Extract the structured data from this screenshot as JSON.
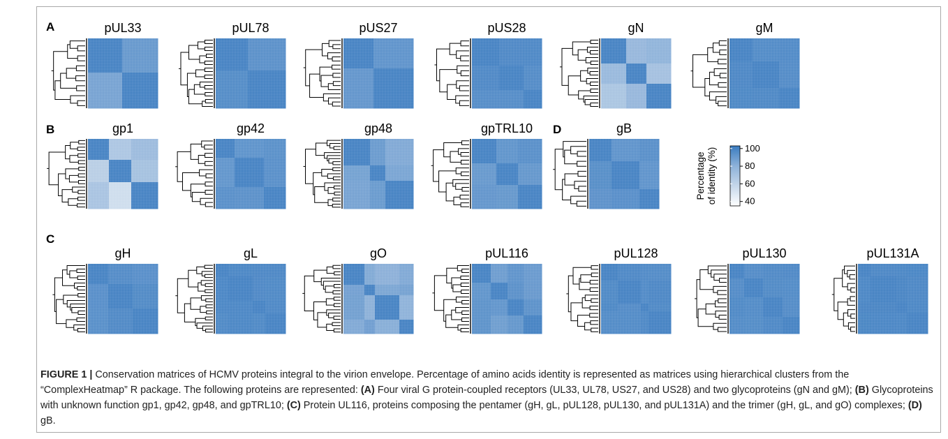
{
  "figure": {
    "panel_letters": [
      "A",
      "B",
      "C",
      "D"
    ],
    "caption": {
      "label": "FIGURE 1 |",
      "segments": [
        {
          "t": " Conservation matrices of HCMV proteins integral to the virion envelope. Percentage of amino acids identity is represented as matrices using hierarchical clusters from the “ComplexHeatmap” R package. The following proteins are represented: ",
          "b": false
        },
        {
          "t": "(A)",
          "b": true
        },
        {
          "t": " Four viral G protein-coupled receptors (UL33, UL78, US27, and US28) and two glycoproteins (gN and gM); ",
          "b": false
        },
        {
          "t": "(B)",
          "b": true
        },
        {
          "t": " Glycoproteins with unknown function gp1, gp42, gp48, and gpTRL10; ",
          "b": false
        },
        {
          "t": "(C)",
          "b": true
        },
        {
          "t": " Protein UL116, proteins composing the pentamer (gH, gL, pUL128, pUL130, and pUL131A) and the trimer (gH, gL, and gO) complexes; ",
          "b": false
        },
        {
          "t": "(D)",
          "b": true
        },
        {
          "t": " gB.",
          "b": false
        }
      ]
    }
  },
  "chart_data": {
    "type": "heatmap",
    "color_scale": {
      "title": [
        "Percentage",
        "of identity (%)"
      ],
      "ticks": [
        40,
        60,
        80,
        100
      ],
      "range": [
        35,
        103
      ],
      "colors": [
        "#ffffff",
        "#c6d7ea",
        "#8db1d9",
        "#3a7cc0"
      ]
    },
    "panels": [
      {
        "panel": "A",
        "title": "pUL33",
        "min_identity": 82
      },
      {
        "panel": "A",
        "title": "pUL78",
        "min_identity": 92
      },
      {
        "panel": "A",
        "title": "pUS27",
        "min_identity": 88
      },
      {
        "panel": "A",
        "title": "pUS28",
        "min_identity": 94
      },
      {
        "panel": "A",
        "title": "gN",
        "min_identity": 62
      },
      {
        "panel": "A",
        "title": "gM",
        "min_identity": 95
      },
      {
        "panel": "B",
        "title": "gp1",
        "min_identity": 40
      },
      {
        "panel": "B",
        "title": "gp42",
        "min_identity": 90
      },
      {
        "panel": "B",
        "title": "gp48",
        "min_identity": 78
      },
      {
        "panel": "B",
        "title": "gpTRL10",
        "min_identity": 88
      },
      {
        "panel": "D",
        "title": "gB",
        "min_identity": 91
      },
      {
        "panel": "C",
        "title": "gH",
        "min_identity": 93
      },
      {
        "panel": "C",
        "title": "gL",
        "min_identity": 96
      },
      {
        "panel": "C",
        "title": "gO",
        "min_identity": 74
      },
      {
        "panel": "C",
        "title": "pUL116",
        "min_identity": 86
      },
      {
        "panel": "C",
        "title": "pUL128",
        "min_identity": 95
      },
      {
        "panel": "C",
        "title": "pUL130",
        "min_identity": 94
      },
      {
        "panel": "C",
        "title": "pUL131A",
        "min_identity": 97
      }
    ]
  }
}
